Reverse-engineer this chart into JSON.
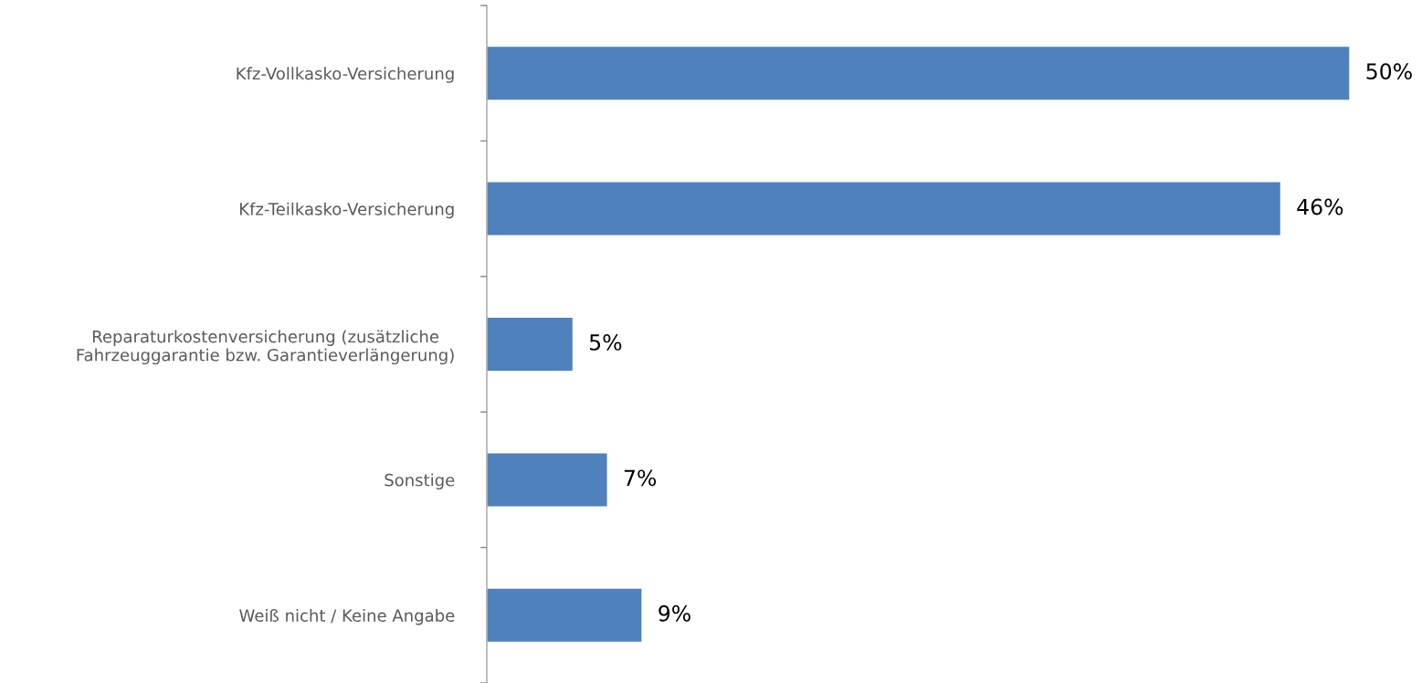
{
  "chart_data": {
    "type": "bar",
    "orientation": "horizontal",
    "categories": [
      "Kfz-Vollkasko-Versicherung",
      "Kfz-Teilkasko-Versicherung",
      "Reparaturkostenversicherung (zusätzliche\nFahrzeuggarantie bzw. Garantieverlängerung)",
      "Sonstige",
      "Weiß nicht / Keine Angabe"
    ],
    "values": [
      50,
      46,
      5,
      7,
      9
    ],
    "value_labels": [
      "50%",
      "46%",
      "5%",
      "7%",
      "9%"
    ],
    "color": "#4f81bd",
    "grid": false,
    "legend": false
  }
}
